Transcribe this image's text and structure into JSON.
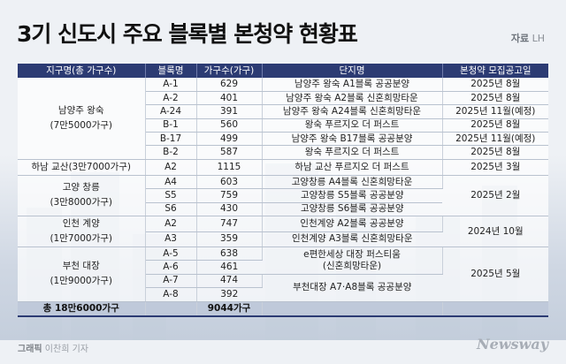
{
  "title": "3기 신도시 주요 블록별 본청약 현황표",
  "source": {
    "label": "자료",
    "value": "LH"
  },
  "headers": [
    "지구명(총 가구수)",
    "블록명",
    "가구수(가구)",
    "단지명",
    "본청약 모집공고일"
  ],
  "districts": [
    {
      "name": "남양주 왕숙",
      "total": "(7만5000가구)"
    },
    {
      "name": "하남 교산(3만7000가구)",
      "total": ""
    },
    {
      "name": "고양 창릉",
      "total": "(3만8000가구)"
    },
    {
      "name": "인천 계양",
      "total": "(1만7000가구)"
    },
    {
      "name": "부천 대장",
      "total": "(1만9000가구)"
    }
  ],
  "rows": [
    {
      "block": "A-1",
      "units": "629",
      "complex": "남양주 왕숙 A1블록 공공분양",
      "date": "2025년 8월"
    },
    {
      "block": "A-2",
      "units": "401",
      "complex": "남양주 왕숙 A2블록 신혼희망타운",
      "date": "2025년 8월"
    },
    {
      "block": "A-24",
      "units": "391",
      "complex": "남양주 왕숙 A24블록 신혼희망타운",
      "date": "2025년 11월(예정)"
    },
    {
      "block": "B-1",
      "units": "560",
      "complex": "왕숙 푸르지오 더 퍼스트",
      "date": "2025년 8월"
    },
    {
      "block": "B-17",
      "units": "499",
      "complex": "남양주 왕숙 B17블록 공공분양",
      "date": "2025년 11월(예정)"
    },
    {
      "block": "B-2",
      "units": "587",
      "complex": "왕숙 푸르지오 더 퍼스트",
      "date": "2025년 8월"
    },
    {
      "block": "A2",
      "units": "1115",
      "complex": "하남 교산 푸르지오 더 퍼스트",
      "date": "2025년 3월"
    },
    {
      "block": "A4",
      "units": "603",
      "complex": "고양창릉 A4블록 신혼희망타운",
      "date": ""
    },
    {
      "block": "S5",
      "units": "759",
      "complex": "고양창릉 S5블록 공공분양",
      "date": ""
    },
    {
      "block": "S6",
      "units": "430",
      "complex": "고양창릉 S6블록 공공분양",
      "date": ""
    },
    {
      "block": "A2",
      "units": "747",
      "complex": "인천계양 A2블록 공공분양",
      "date": ""
    },
    {
      "block": "A3",
      "units": "359",
      "complex": "인천계양 A3블록 신혼희망타운",
      "date": ""
    },
    {
      "block": "A-5",
      "units": "638",
      "complex": "e편한세상 대장 퍼스티움",
      "date": ""
    },
    {
      "block": "A-6",
      "units": "461",
      "complex": "(신혼희망타운)",
      "date": ""
    },
    {
      "block": "A-7",
      "units": "474",
      "complex": "",
      "date": ""
    },
    {
      "block": "A-8",
      "units": "392",
      "complex": "",
      "date": ""
    }
  ],
  "merged": {
    "goyang_date": "2025년 2월",
    "incheon_date": "2024년 10월",
    "bucheon_complex_b": "부천대장 A7·A8블록 공공분양",
    "bucheon_date": "2025년 5월"
  },
  "total": {
    "label": "총 18만6000가구",
    "units": "9044가구"
  },
  "credit": {
    "label": "그래픽",
    "name": "이찬희 기자"
  },
  "logo": "Newsway"
}
